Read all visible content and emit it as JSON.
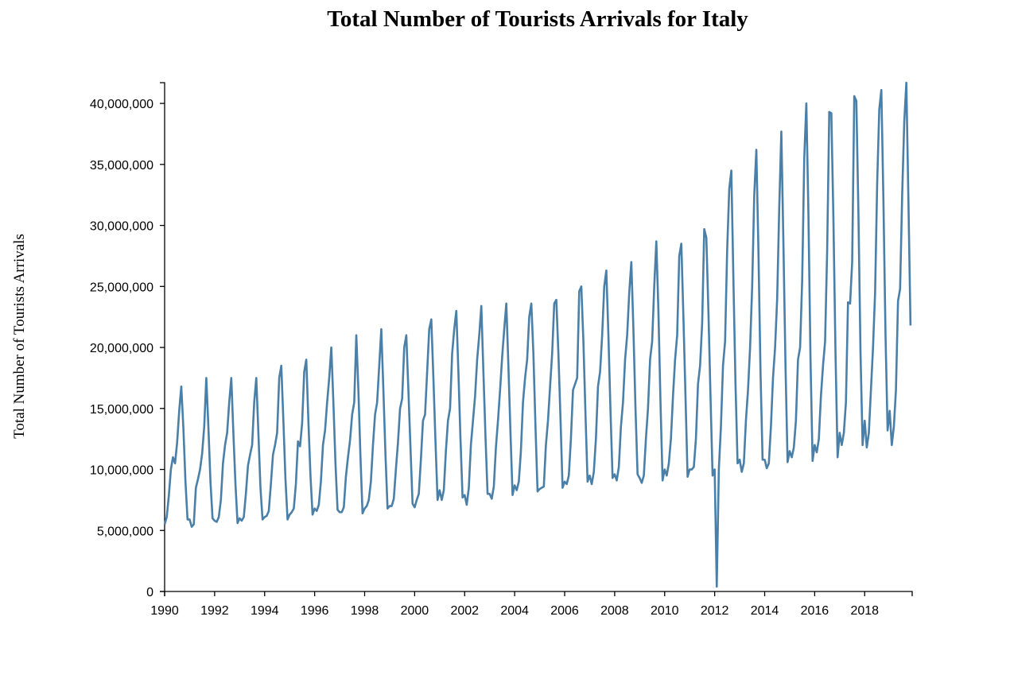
{
  "chart_data": {
    "type": "line",
    "title": "Total Number of Tourists Arrivals for Italy",
    "xlabel": "",
    "ylabel": "Total Number of Tourists Arrivals",
    "xlim": [
      1990,
      2019.9
    ],
    "ylim": [
      0,
      41700000
    ],
    "grid": false,
    "legend": "none",
    "x_ticks": [
      "1990",
      "1992",
      "1994",
      "1996",
      "1998",
      "2000",
      "2002",
      "2004",
      "2006",
      "2008",
      "2010",
      "2012",
      "2014",
      "2016",
      "2018"
    ],
    "y_ticks": [
      "0",
      "5,000,000",
      "10,000,000",
      "15,000,000",
      "20,000,000",
      "25,000,000",
      "30,000,000",
      "35,000,000",
      "40,000,000"
    ],
    "colors": {
      "series": "#4a7fa8"
    },
    "series": [
      {
        "x_start": "1990-01",
        "frequency": "monthly",
        "values": [
          5.5,
          6.1,
          7.8,
          10.0,
          11.0,
          10.5,
          12.2,
          14.8,
          16.8,
          13.4,
          9.0,
          5.9,
          5.9,
          5.3,
          5.5,
          8.5,
          9.2,
          10.0,
          11.3,
          13.5,
          17.5,
          13.5,
          9.0,
          6.0,
          5.8,
          5.7,
          6.1,
          7.5,
          10.5,
          12.0,
          13.0,
          15.5,
          17.5,
          13.0,
          8.8,
          5.6,
          6.0,
          5.8,
          6.1,
          8.0,
          10.3,
          11.2,
          12.0,
          15.5,
          17.5,
          13.0,
          8.5,
          5.9,
          6.1,
          6.2,
          6.6,
          8.8,
          11.2,
          12.0,
          13.0,
          17.5,
          18.5,
          14.0,
          9.2,
          5.9,
          6.3,
          6.5,
          6.8,
          8.8,
          12.3,
          11.9,
          13.8,
          18.0,
          19.0,
          14.0,
          9.5,
          6.3,
          6.8,
          6.6,
          7.1,
          9.0,
          12.0,
          13.2,
          15.5,
          17.5,
          20.0,
          15.5,
          10.5,
          6.7,
          6.5,
          6.5,
          6.9,
          9.4,
          11.0,
          12.4,
          14.5,
          15.5,
          21.0,
          16.5,
          11.0,
          6.4,
          6.8,
          7.0,
          7.5,
          9.0,
          12.0,
          14.5,
          15.5,
          18.5,
          21.5,
          16.5,
          11.2,
          6.8,
          7.0,
          7.0,
          7.6,
          10.0,
          12.2,
          15.0,
          15.8,
          20.0,
          21.0,
          16.5,
          11.8,
          7.2,
          6.9,
          7.5,
          8.0,
          10.8,
          14.0,
          14.5,
          18.0,
          21.5,
          22.3,
          17.5,
          12.3,
          7.5,
          8.3,
          7.5,
          8.3,
          11.5,
          14.0,
          15.0,
          19.5,
          21.5,
          23.0,
          18.0,
          12.5,
          7.7,
          7.9,
          7.1,
          8.5,
          12.0,
          14.0,
          16.0,
          19.0,
          21.0,
          23.4,
          18.0,
          12.7,
          8.0,
          8.0,
          7.6,
          8.6,
          11.8,
          14.0,
          16.5,
          19.2,
          21.5,
          23.6,
          18.5,
          13.0,
          7.9,
          8.7,
          8.3,
          9.0,
          11.5,
          15.5,
          17.5,
          19.0,
          22.5,
          23.6,
          19.5,
          13.5,
          8.2,
          8.4,
          8.5,
          8.6,
          12.0,
          14.0,
          16.8,
          19.5,
          23.6,
          23.9,
          19.5,
          14.2,
          8.5,
          9.0,
          8.8,
          9.5,
          12.5,
          16.5,
          17.0,
          17.5,
          24.6,
          25.0,
          20.5,
          14.5,
          9.0,
          9.5,
          8.8,
          9.8,
          12.5,
          16.8,
          18.0,
          21.0,
          25.0,
          26.3,
          21.0,
          14.8,
          9.3,
          9.6,
          9.1,
          10.2,
          13.5,
          15.5,
          19.0,
          21.0,
          24.5,
          27.0,
          21.5,
          15.0,
          9.6,
          9.3,
          8.9,
          9.5,
          12.5,
          15.0,
          19.0,
          20.5,
          25.0,
          28.7,
          23.0,
          15.5,
          9.1,
          10.0,
          9.5,
          10.5,
          12.5,
          16.0,
          19.0,
          21.0,
          27.5,
          28.5,
          22.5,
          16.0,
          9.4,
          10.0,
          10.0,
          10.2,
          12.5,
          17.0,
          18.5,
          22.0,
          29.7,
          29.0,
          23.0,
          16.0,
          9.5,
          10.0,
          0.4,
          10.0,
          13.5,
          18.5,
          20.5,
          28.0,
          33.0,
          34.5,
          25.5,
          17.0,
          10.5,
          10.8,
          9.8,
          10.5,
          14.0,
          16.5,
          20.0,
          25.0,
          32.5,
          36.2,
          28.0,
          18.0,
          10.8,
          10.8,
          10.1,
          10.5,
          13.5,
          17.5,
          20.0,
          24.0,
          31.5,
          37.7,
          28.5,
          18.5,
          10.6,
          11.5,
          11.0,
          11.8,
          14.0,
          19.0,
          20.0,
          25.5,
          35.5,
          40.0,
          31.0,
          19.0,
          10.7,
          12.0,
          11.4,
          12.5,
          16.0,
          18.5,
          20.5,
          28.0,
          39.3,
          39.2,
          30.5,
          19.5,
          11.0,
          13.0,
          12.0,
          13.0,
          15.5,
          23.7,
          23.6,
          27.0,
          40.6,
          40.2,
          31.0,
          19.5,
          12.0,
          14.0,
          11.8,
          13.0,
          16.5,
          20.0,
          24.5,
          33.5,
          39.5,
          41.1,
          32.0,
          21.0,
          13.2,
          14.8,
          12.0,
          13.5,
          16.5,
          23.8,
          24.8,
          32.5,
          38.5,
          41.7,
          32.0,
          21.8
        ],
        "value_unit": "millions"
      }
    ]
  }
}
